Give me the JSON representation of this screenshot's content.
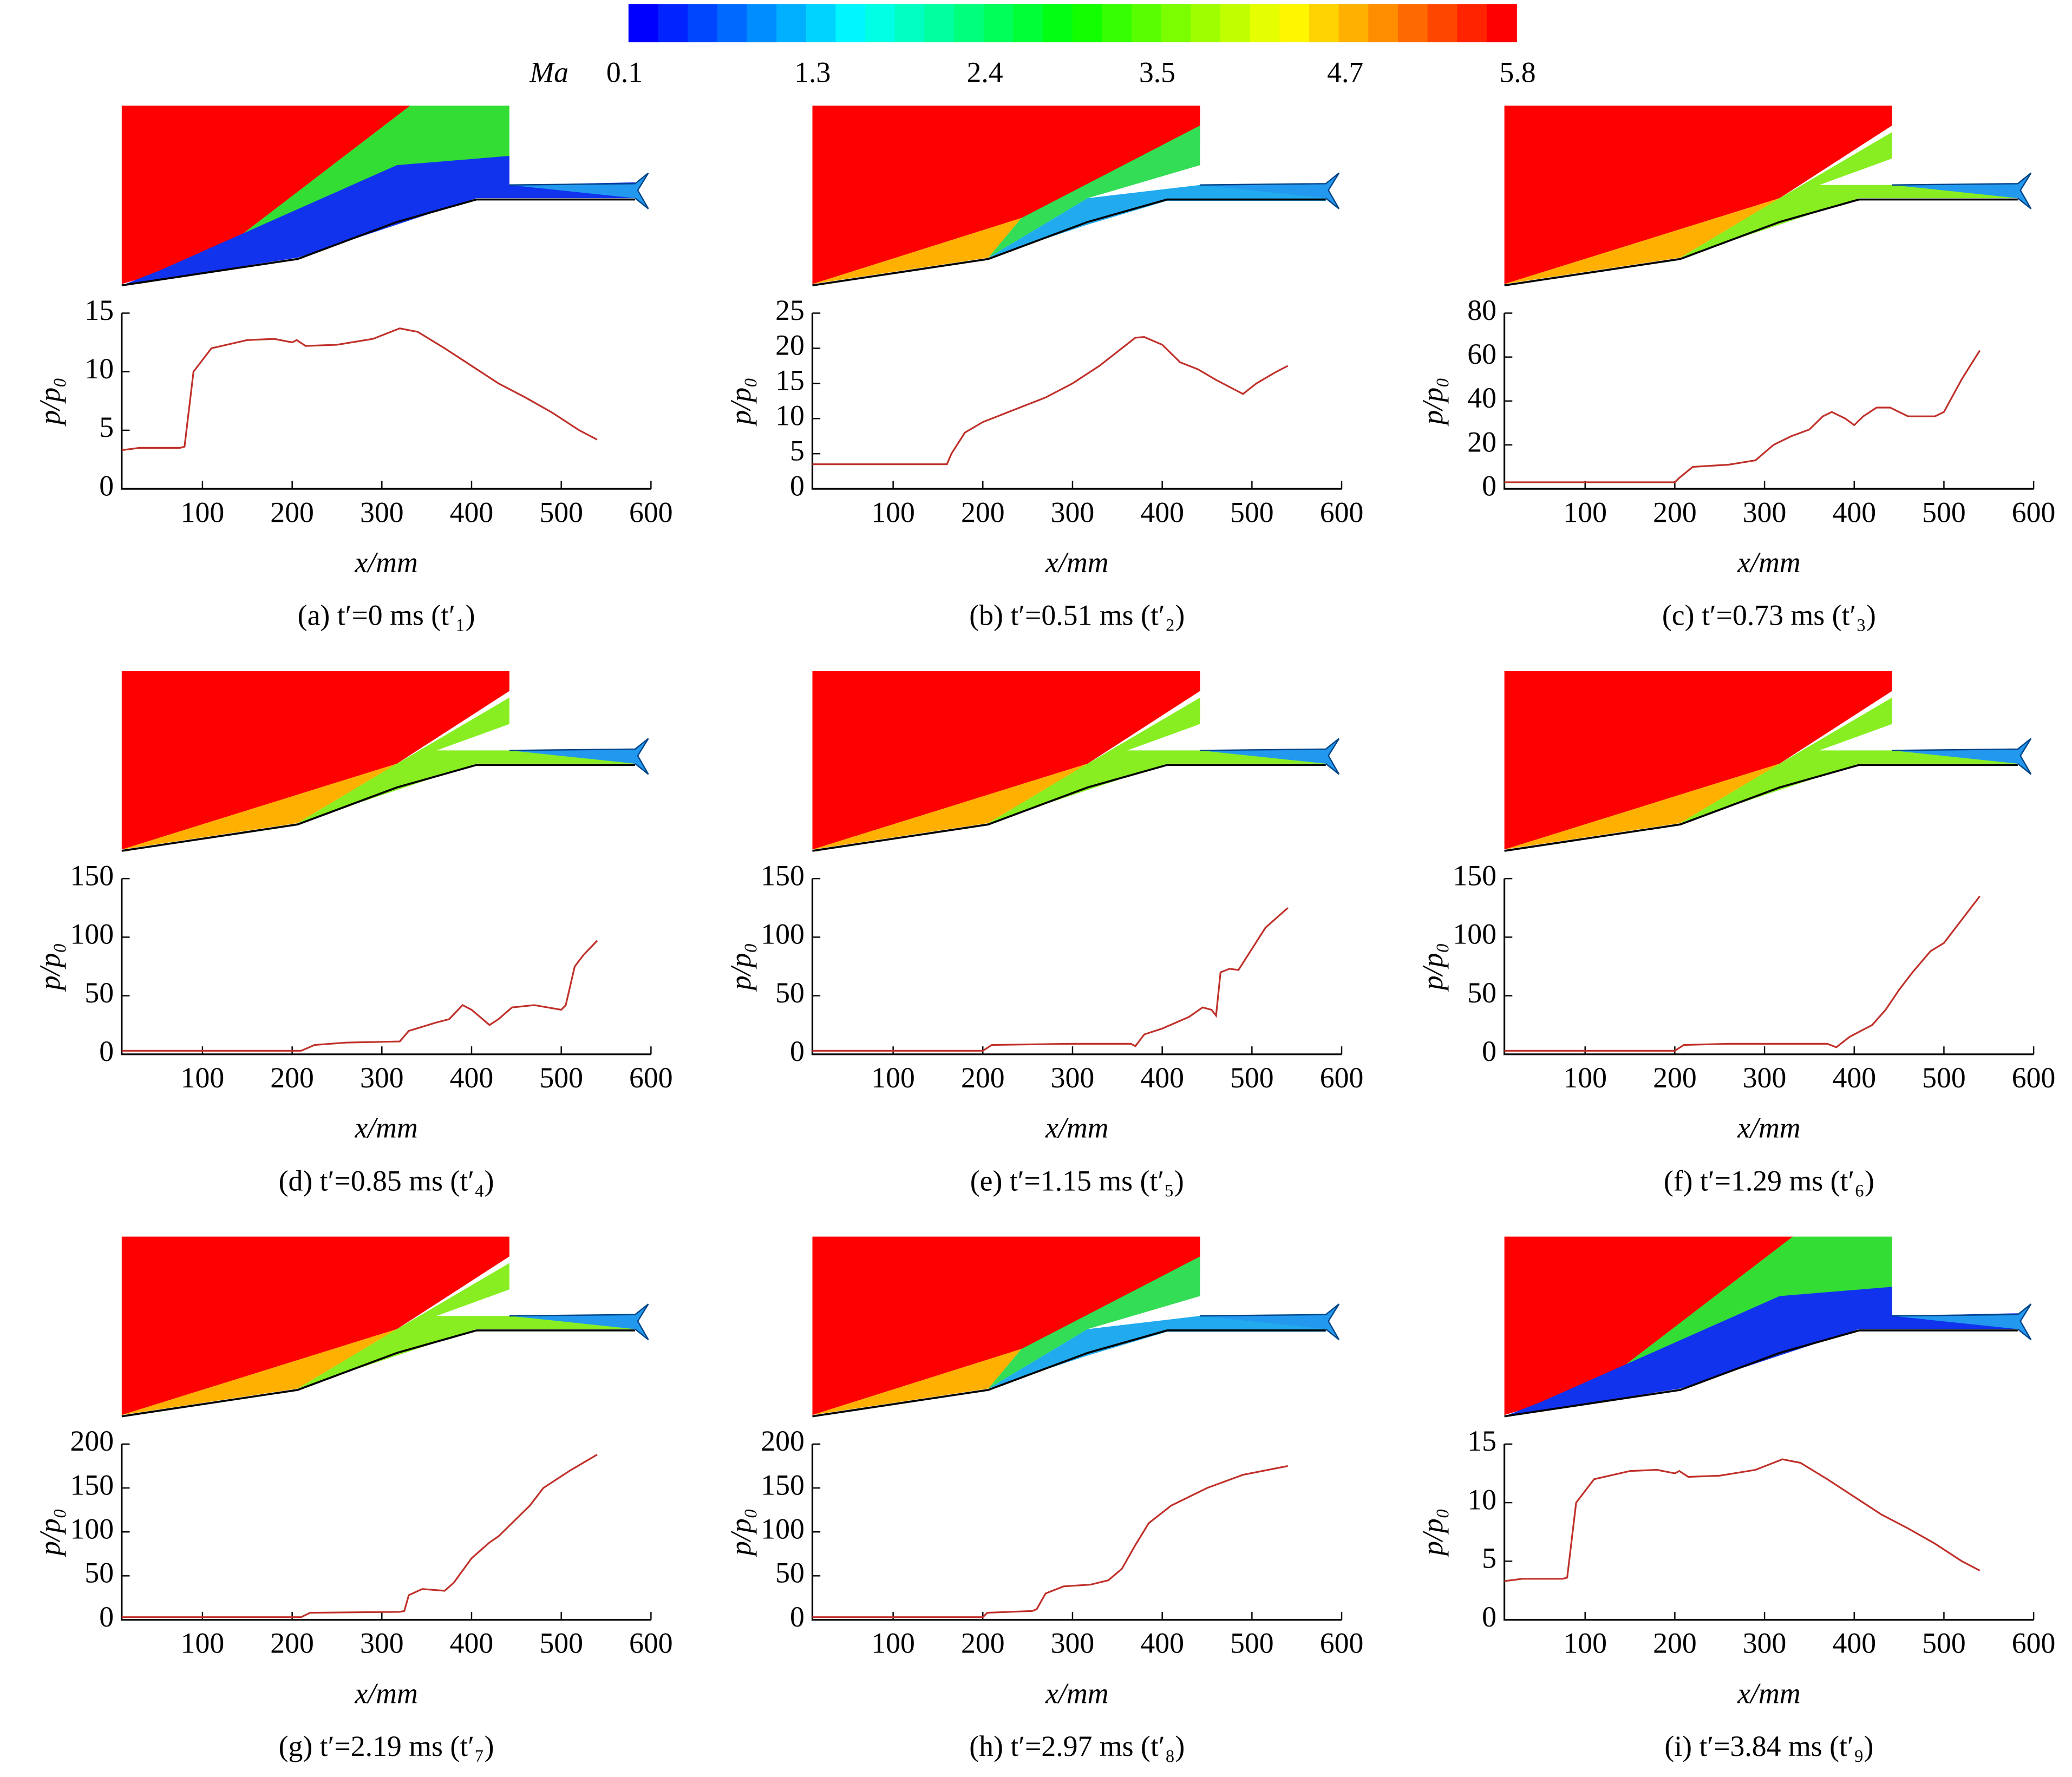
{
  "colorbar": {
    "label": "Ma",
    "lim": [
      0.1,
      5.8
    ],
    "ticks": [
      0.1,
      1.3,
      2.4,
      3.5,
      4.7,
      5.8
    ]
  },
  "chart_data": [
    {
      "type": "line",
      "caption": "(a) t′=0 ms (t′₁)",
      "xlabel": "x/mm",
      "ylabel": "p/p₀",
      "color": "#c0302a",
      "x": [
        10,
        30,
        75,
        80,
        90,
        110,
        150,
        180,
        200,
        205,
        215,
        250,
        290,
        320,
        340,
        370,
        400,
        430,
        460,
        490,
        520,
        540
      ],
      "values": [
        3.3,
        3.5,
        3.5,
        3.6,
        10,
        12,
        12.7,
        12.8,
        12.5,
        12.7,
        12.2,
        12.3,
        12.8,
        13.7,
        13.4,
        12,
        10.5,
        9,
        7.8,
        6.5,
        5,
        4.2
      ],
      "xlim": [
        10,
        600
      ],
      "ylim": [
        0,
        15
      ],
      "xticks": [
        100,
        200,
        300,
        400,
        500,
        600
      ],
      "yticks": [
        0,
        5,
        10,
        15
      ]
    },
    {
      "type": "line",
      "caption": "(b) t′=0.51 ms (t′₂)",
      "xlabel": "x/mm",
      "ylabel": "p/p₀",
      "color": "#c0302a",
      "x": [
        10,
        160,
        165,
        180,
        200,
        230,
        270,
        300,
        330,
        355,
        370,
        380,
        400,
        420,
        440,
        460,
        490,
        505,
        525,
        540
      ],
      "values": [
        3.5,
        3.5,
        5,
        8,
        9.5,
        11,
        13,
        15,
        17.5,
        20,
        21.5,
        21.6,
        20.5,
        18,
        17,
        15.5,
        13.5,
        15,
        16.5,
        17.5
      ],
      "xlim": [
        10,
        600
      ],
      "ylim": [
        0,
        25
      ],
      "xticks": [
        100,
        200,
        300,
        400,
        500,
        600
      ],
      "yticks": [
        0,
        5,
        10,
        15,
        20,
        25
      ]
    },
    {
      "type": "line",
      "caption": "(c) t′=0.73 ms (t′₃)",
      "xlabel": "x/mm",
      "ylabel": "p/p₀",
      "color": "#c0302a",
      "x": [
        10,
        200,
        205,
        220,
        260,
        290,
        310,
        330,
        350,
        365,
        375,
        390,
        400,
        410,
        425,
        440,
        460,
        490,
        500,
        520,
        540
      ],
      "values": [
        3,
        3,
        5,
        10,
        11,
        13,
        20,
        24,
        27,
        33,
        35,
        32,
        29,
        33,
        37,
        37,
        33,
        33,
        35,
        50,
        63
      ],
      "xlim": [
        10,
        600
      ],
      "ylim": [
        0,
        80
      ],
      "xticks": [
        100,
        200,
        300,
        400,
        500,
        600
      ],
      "yticks": [
        0,
        20,
        40,
        60,
        80
      ]
    },
    {
      "type": "line",
      "caption": "(d) t′=0.85 ms (t′₄)",
      "xlabel": "x/mm",
      "ylabel": "p/p₀",
      "color": "#c0302a",
      "x": [
        10,
        210,
        225,
        260,
        320,
        330,
        360,
        375,
        390,
        400,
        420,
        430,
        445,
        470,
        500,
        505,
        515,
        525,
        540
      ],
      "values": [
        3,
        3,
        8,
        10,
        11,
        20,
        27,
        30,
        42,
        38,
        25,
        30,
        40,
        42,
        38,
        42,
        75,
        85,
        97
      ],
      "xlim": [
        10,
        600
      ],
      "ylim": [
        0,
        150
      ],
      "xticks": [
        100,
        200,
        300,
        400,
        500,
        600
      ],
      "yticks": [
        0,
        50,
        100,
        150
      ]
    },
    {
      "type": "line",
      "caption": "(e) t′=1.15 ms (t′₅)",
      "xlabel": "x/mm",
      "ylabel": "p/p₀",
      "color": "#c0302a",
      "x": [
        10,
        200,
        210,
        300,
        365,
        370,
        380,
        400,
        430,
        445,
        455,
        460,
        465,
        475,
        485,
        500,
        515,
        540
      ],
      "values": [
        3,
        3,
        8,
        9,
        9,
        7,
        17,
        22,
        32,
        40,
        38,
        33,
        70,
        73,
        72,
        90,
        108,
        125
      ],
      "xlim": [
        10,
        600
      ],
      "ylim": [
        0,
        150
      ],
      "xticks": [
        100,
        200,
        300,
        400,
        500,
        600
      ],
      "yticks": [
        0,
        50,
        100,
        150
      ]
    },
    {
      "type": "line",
      "caption": "(f) t′=1.29 ms (t′₆)",
      "xlabel": "x/mm",
      "ylabel": "p/p₀",
      "color": "#c0302a",
      "x": [
        10,
        200,
        210,
        260,
        370,
        380,
        395,
        420,
        435,
        450,
        465,
        485,
        500,
        520,
        540
      ],
      "values": [
        3,
        3,
        8,
        9,
        9,
        6,
        15,
        25,
        38,
        55,
        70,
        88,
        95,
        115,
        135
      ],
      "xlim": [
        10,
        600
      ],
      "ylim": [
        0,
        150
      ],
      "xticks": [
        100,
        200,
        300,
        400,
        500,
        600
      ],
      "yticks": [
        0,
        50,
        100,
        150
      ]
    },
    {
      "type": "line",
      "caption": "(g) t′=2.19 ms (t′₇)",
      "xlabel": "x/mm",
      "ylabel": "p/p₀",
      "color": "#c0302a",
      "x": [
        10,
        210,
        220,
        320,
        325,
        330,
        345,
        370,
        380,
        400,
        420,
        430,
        450,
        465,
        480,
        510,
        540
      ],
      "values": [
        3,
        3,
        8,
        9,
        10,
        28,
        35,
        33,
        42,
        70,
        88,
        95,
        115,
        130,
        150,
        170,
        188
      ],
      "xlim": [
        10,
        600
      ],
      "ylim": [
        0,
        200
      ],
      "xticks": [
        100,
        200,
        300,
        400,
        500,
        600
      ],
      "yticks": [
        0,
        50,
        100,
        150,
        200
      ]
    },
    {
      "type": "line",
      "caption": "(h) t′=2.97 ms (t′₈)",
      "xlabel": "x/mm",
      "ylabel": "p/p₀",
      "color": "#c0302a",
      "x": [
        10,
        200,
        205,
        255,
        260,
        270,
        290,
        320,
        340,
        355,
        370,
        385,
        410,
        450,
        490,
        540
      ],
      "values": [
        3,
        3,
        8,
        10,
        12,
        30,
        38,
        40,
        45,
        58,
        85,
        110,
        130,
        150,
        165,
        175
      ],
      "xlim": [
        10,
        600
      ],
      "ylim": [
        0,
        200
      ],
      "xticks": [
        100,
        200,
        300,
        400,
        500,
        600
      ],
      "yticks": [
        0,
        50,
        100,
        150,
        200
      ]
    },
    {
      "type": "line",
      "caption": "(i) t′=3.84 ms (t′₉)",
      "xlabel": "x/mm",
      "ylabel": "p/p₀",
      "color": "#c0302a",
      "x": [
        10,
        30,
        75,
        80,
        90,
        110,
        150,
        180,
        200,
        205,
        215,
        250,
        290,
        320,
        340,
        370,
        400,
        430,
        460,
        490,
        520,
        540
      ],
      "values": [
        3.3,
        3.5,
        3.5,
        3.6,
        10,
        12,
        12.7,
        12.8,
        12.5,
        12.7,
        12.2,
        12.3,
        12.8,
        13.7,
        13.4,
        12,
        10.5,
        9,
        7.8,
        6.5,
        5,
        4.2
      ],
      "xlim": [
        10,
        600
      ],
      "ylim": [
        0,
        15
      ],
      "xticks": [
        100,
        200,
        300,
        400,
        500,
        600
      ],
      "yticks": [
        0,
        5,
        10,
        15
      ]
    }
  ]
}
